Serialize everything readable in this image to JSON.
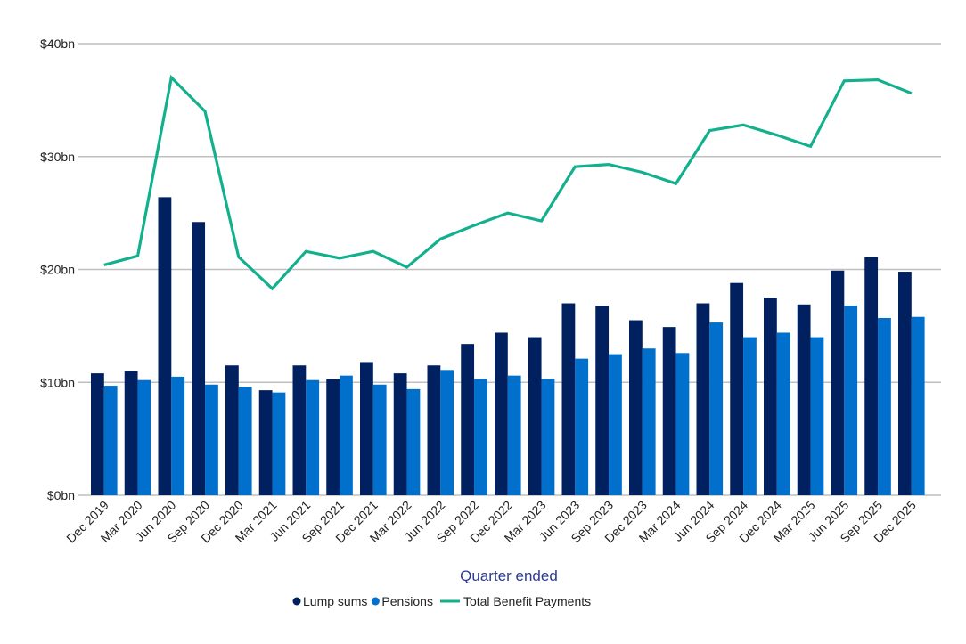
{
  "chart_data": {
    "type": "bar+line",
    "title": "",
    "xlabel": "Quarter ended",
    "ylabel": "",
    "ylim": [
      0,
      40
    ],
    "yticks": [
      0,
      10,
      20,
      30,
      40
    ],
    "ytick_labels": [
      "$0bn",
      "$10bn",
      "$20bn",
      "$30bn",
      "$40bn"
    ],
    "grid": true,
    "legend_position": "bottom",
    "categories": [
      "Dec 2019",
      "Mar 2020",
      "Jun 2020",
      "Sep 2020",
      "Dec 2020",
      "Mar 2021",
      "Jun 2021",
      "Sep 2021",
      "Dec 2021",
      "Mar 2022",
      "Jun 2022",
      "Sep 2022",
      "Dec 2022",
      "Mar 2023",
      "Jun 2023",
      "Sep 2023",
      "Dec 2023",
      "Mar 2024",
      "Jun 2024",
      "Sep 2024",
      "Dec 2024",
      "Mar 2025",
      "Jun 2025",
      "Sep 2025",
      "Dec 2025"
    ],
    "series": [
      {
        "name": "Lump sums",
        "kind": "bar",
        "color": "#00205F",
        "values": [
          10.8,
          11.0,
          26.4,
          24.2,
          11.5,
          9.3,
          11.5,
          10.3,
          11.8,
          10.8,
          11.5,
          13.4,
          14.4,
          14.0,
          17.0,
          16.8,
          15.5,
          14.9,
          17.0,
          18.8,
          17.5,
          16.9,
          19.9,
          21.1,
          19.8
        ]
      },
      {
        "name": "Pensions",
        "kind": "bar",
        "color": "#0070CC",
        "values": [
          9.7,
          10.2,
          10.5,
          9.8,
          9.6,
          9.1,
          10.2,
          10.6,
          9.8,
          9.4,
          11.1,
          10.3,
          10.6,
          10.3,
          12.1,
          12.5,
          13.0,
          12.6,
          15.3,
          14.0,
          14.4,
          14.0,
          16.8,
          15.7,
          15.8
        ]
      },
      {
        "name": "Total Benefit Payments",
        "kind": "line",
        "color": "#13B08E",
        "values": [
          20.4,
          21.2,
          37.0,
          34.0,
          21.1,
          18.3,
          21.6,
          21.0,
          21.6,
          20.2,
          22.7,
          23.9,
          25.0,
          24.3,
          29.1,
          29.3,
          28.6,
          27.6,
          32.3,
          32.8,
          31.9,
          30.9,
          36.7,
          36.8,
          35.6
        ]
      }
    ]
  }
}
